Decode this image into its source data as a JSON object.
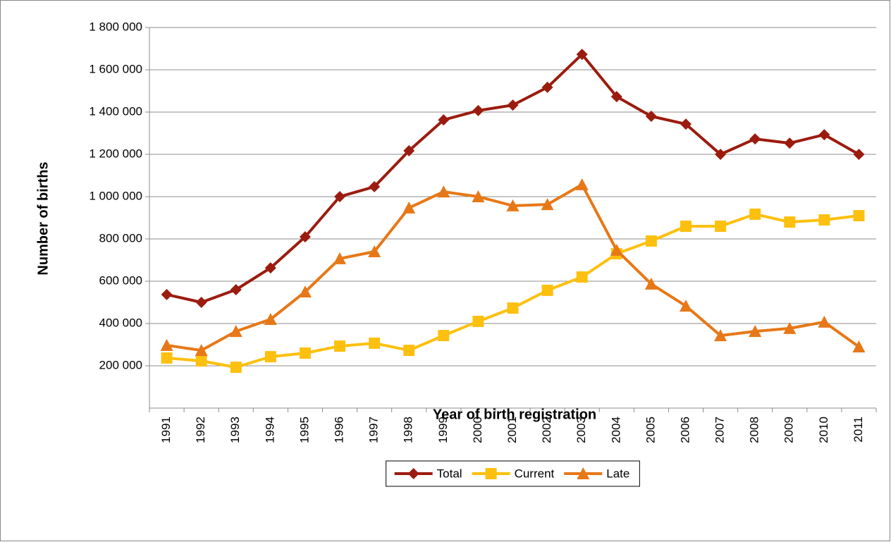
{
  "chart_data": {
    "type": "line",
    "x_label": "Year of birth registration",
    "y_label": "Number of births",
    "categories": [
      "1991",
      "1992",
      "1993",
      "1994",
      "1995",
      "1996",
      "1997",
      "1998",
      "1999",
      "2000",
      "2001",
      "2002",
      "2003",
      "2004",
      "2005",
      "2006",
      "2007",
      "2008",
      "2009",
      "2010",
      "2011"
    ],
    "series": [
      {
        "name": "Total",
        "color": "#9b1c0f",
        "marker": "diamond",
        "values": [
          537000,
          500000,
          560000,
          663000,
          810000,
          1000000,
          1047000,
          1217000,
          1363000,
          1407000,
          1433000,
          1517000,
          1673000,
          1473000,
          1380000,
          1343000,
          1200000,
          1273000,
          1253000,
          1293000,
          1200000
        ]
      },
      {
        "name": "Current",
        "color": "#fdc00f",
        "marker": "square",
        "values": [
          237000,
          223000,
          193000,
          243000,
          260000,
          293000,
          307000,
          273000,
          343000,
          410000,
          473000,
          557000,
          620000,
          730000,
          790000,
          860000,
          860000,
          917000,
          880000,
          890000,
          910000
        ]
      },
      {
        "name": "Late",
        "color": "#e77817",
        "marker": "triangle",
        "values": [
          297000,
          273000,
          363000,
          420000,
          550000,
          707000,
          740000,
          947000,
          1023000,
          1000000,
          957000,
          963000,
          1057000,
          747000,
          587000,
          483000,
          343000,
          363000,
          377000,
          407000,
          290000
        ]
      }
    ],
    "ylim": [
      0,
      1800000
    ],
    "yticks": [
      {
        "value": 200000,
        "label": "200 000"
      },
      {
        "value": 400000,
        "label": "400 000"
      },
      {
        "value": 600000,
        "label": "600 000"
      },
      {
        "value": 800000,
        "label": "800 000"
      },
      {
        "value": 1000000,
        "label": "1 000 000"
      },
      {
        "value": 1200000,
        "label": "1 200 000"
      },
      {
        "value": 1400000,
        "label": "1 400 000"
      },
      {
        "value": 1600000,
        "label": "1 600 000"
      },
      {
        "value": 1800000,
        "label": "1 800 000"
      }
    ],
    "grid": true,
    "legend": "bottom"
  }
}
